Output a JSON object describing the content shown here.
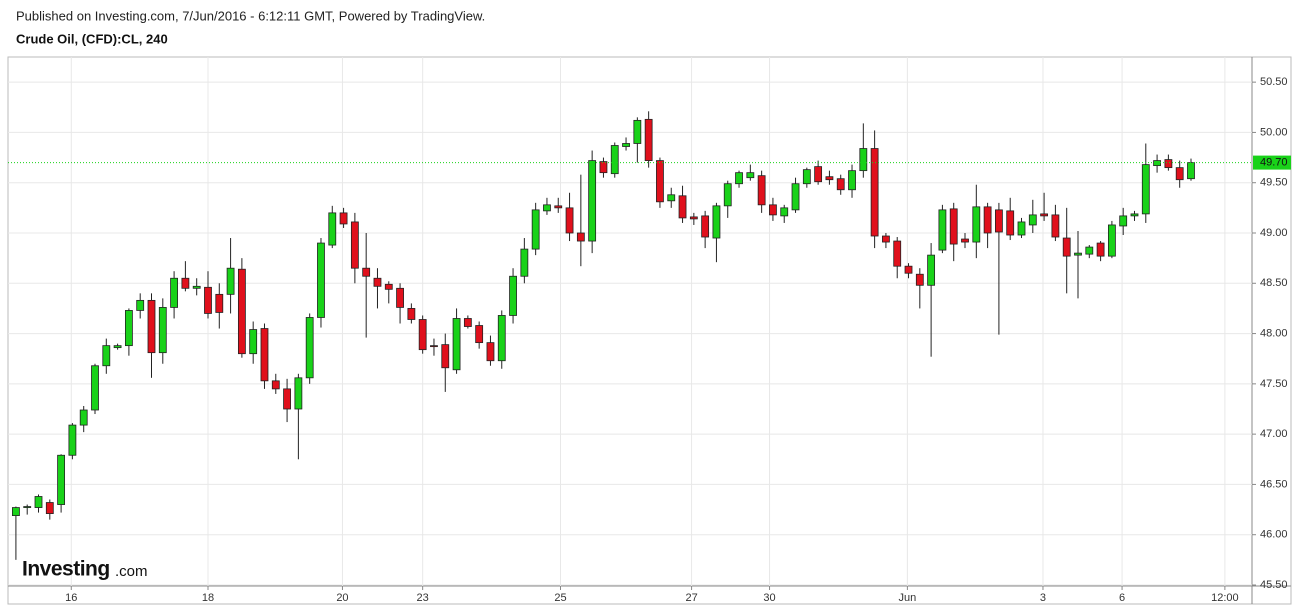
{
  "chart_data": {
    "type": "candlestick",
    "title": "Crude Oil, (CFD):CL, 240",
    "subtitle": "Published on Investing.com, 7/Jun/2016 - 6:12:11 GMT, Powered by TradingView.",
    "logo": "Investing",
    "logo_suffix": ".com",
    "up_color": "#19d219",
    "down_color": "#e0101c",
    "grid": true,
    "ylim": [
      45.49,
      50.75
    ],
    "yticks": [
      {
        "value": 45.5,
        "label": "45.50"
      },
      {
        "value": 46,
        "label": "46.00"
      },
      {
        "value": 46.5,
        "label": "46.50"
      },
      {
        "value": 47,
        "label": "47.00"
      },
      {
        "value": 47.5,
        "label": "47.50"
      },
      {
        "value": 48,
        "label": "48.00"
      },
      {
        "value": 48.5,
        "label": "48.50"
      },
      {
        "value": 49,
        "label": "49.00"
      },
      {
        "value": 49.5,
        "label": "49.50"
      },
      {
        "value": 50,
        "label": "50.00"
      },
      {
        "value": 50.5,
        "label": "50.50"
      }
    ],
    "xlim": [
      -0.7,
      109.4
    ],
    "xticks": [
      {
        "value": 4.9,
        "label": "16"
      },
      {
        "value": 17.0,
        "label": "18"
      },
      {
        "value": 28.9,
        "label": "20"
      },
      {
        "value": 36.0,
        "label": "23"
      },
      {
        "value": 48.2,
        "label": "25"
      },
      {
        "value": 59.8,
        "label": "27"
      },
      {
        "value": 66.7,
        "label": "30"
      },
      {
        "value": 78.9,
        "label": "Jun"
      },
      {
        "value": 90.9,
        "label": "3"
      },
      {
        "value": 97.9,
        "label": "6"
      },
      {
        "value": 107.0,
        "label": "12:00"
      }
    ],
    "last_price": {
      "value": 49.7,
      "label": "49.70"
    },
    "open": [
      46.19,
      46.27,
      46.27,
      46.32,
      46.3,
      46.79,
      47.09,
      47.24,
      47.68,
      47.86,
      47.88,
      48.23,
      48.33,
      47.81,
      48.26,
      48.55,
      48.45,
      48.46,
      48.39,
      48.39,
      48.64,
      47.8,
      48.05,
      47.53,
      47.45,
      47.25,
      47.56,
      48.16,
      48.88,
      49.2,
      49.11,
      48.65,
      48.55,
      48.49,
      48.45,
      48.25,
      48.14,
      47.88,
      47.89,
      47.64,
      48.15,
      48.08,
      47.91,
      47.73,
      48.18,
      48.57,
      48.84,
      49.22,
      49.27,
      49.25,
      49.0,
      48.92,
      49.71,
      49.59,
      49.86,
      49.89,
      50.13,
      49.72,
      49.32,
      49.37,
      49.16,
      49.17,
      48.95,
      49.27,
      49.49,
      49.55,
      49.57,
      49.28,
      49.17,
      49.23,
      49.49,
      49.66,
      49.56,
      49.54,
      49.43,
      49.62,
      49.84,
      48.97,
      48.92,
      48.67,
      48.59,
      48.48,
      48.83,
      49.24,
      48.94,
      48.91,
      49.26,
      49.23,
      49.22,
      48.98,
      49.08,
      49.19,
      49.18,
      48.95,
      48.78,
      48.79,
      48.9,
      48.77,
      49.07,
      49.17,
      49.19,
      49.67,
      49.73,
      49.65,
      49.54
    ],
    "high": [
      46.28,
      46.3,
      46.4,
      46.35,
      46.8,
      47.11,
      47.28,
      47.7,
      47.95,
      47.9,
      48.25,
      48.4,
      48.4,
      48.35,
      48.62,
      48.72,
      48.55,
      48.62,
      48.5,
      48.95,
      48.75,
      48.12,
      48.1,
      47.6,
      47.55,
      47.6,
      48.2,
      48.95,
      49.27,
      49.25,
      49.2,
      49.0,
      48.65,
      48.52,
      48.5,
      48.3,
      48.18,
      47.95,
      48.0,
      48.25,
      48.18,
      48.12,
      47.98,
      48.23,
      48.65,
      48.95,
      49.3,
      49.35,
      49.35,
      49.4,
      49.58,
      49.82,
      49.75,
      49.9,
      49.95,
      50.15,
      50.21,
      49.75,
      49.45,
      49.47,
      49.2,
      49.22,
      49.3,
      49.52,
      49.62,
      49.68,
      49.62,
      49.35,
      49.28,
      49.55,
      49.65,
      49.72,
      49.62,
      49.58,
      49.68,
      50.09,
      50.02,
      49.0,
      48.96,
      48.7,
      48.65,
      48.9,
      49.28,
      49.3,
      49.0,
      49.48,
      49.3,
      49.3,
      49.35,
      49.15,
      49.33,
      49.4,
      49.28,
      49.25,
      49.02,
      48.88,
      48.92,
      49.12,
      49.25,
      49.22,
      49.89,
      49.78,
      49.78,
      49.72,
      49.74
    ],
    "low": [
      45.75,
      46.2,
      46.22,
      46.15,
      46.22,
      46.75,
      47.02,
      47.2,
      47.6,
      47.84,
      47.78,
      48.15,
      47.56,
      47.7,
      48.15,
      48.42,
      48.38,
      48.15,
      48.05,
      48.2,
      47.76,
      47.7,
      47.45,
      47.4,
      47.12,
      46.75,
      47.5,
      48.06,
      48.85,
      49.05,
      48.5,
      47.96,
      48.25,
      48.3,
      48.1,
      48.1,
      47.8,
      47.78,
      47.42,
      47.6,
      48.05,
      47.85,
      47.68,
      47.65,
      48.1,
      48.5,
      48.78,
      49.18,
      49.2,
      48.92,
      48.67,
      48.8,
      49.55,
      49.55,
      49.82,
      49.7,
      49.65,
      49.25,
      49.25,
      49.1,
      49.08,
      48.85,
      48.71,
      49.15,
      49.45,
      49.52,
      49.2,
      49.12,
      49.1,
      49.2,
      49.45,
      49.48,
      49.48,
      49.38,
      49.35,
      49.55,
      48.85,
      48.85,
      48.55,
      48.55,
      48.25,
      47.77,
      48.8,
      48.72,
      48.85,
      48.75,
      48.85,
      47.99,
      48.93,
      48.95,
      49.0,
      49.12,
      48.92,
      48.4,
      48.35,
      48.75,
      48.72,
      48.75,
      48.98,
      49.12,
      49.1,
      49.6,
      49.62,
      49.45,
      49.52
    ],
    "close": [
      46.27,
      46.28,
      46.38,
      46.21,
      46.79,
      47.09,
      47.24,
      47.68,
      47.88,
      47.88,
      48.23,
      48.33,
      47.81,
      48.26,
      48.55,
      48.45,
      48.47,
      48.2,
      48.21,
      48.65,
      47.8,
      48.04,
      47.53,
      47.45,
      47.25,
      47.56,
      48.16,
      48.9,
      49.2,
      49.09,
      48.65,
      48.57,
      48.47,
      48.44,
      48.26,
      48.14,
      47.84,
      47.87,
      47.66,
      48.15,
      48.07,
      47.91,
      47.73,
      48.18,
      48.57,
      48.84,
      49.23,
      49.28,
      49.25,
      49.0,
      48.92,
      49.72,
      49.6,
      49.87,
      49.89,
      50.12,
      49.72,
      49.31,
      49.38,
      49.15,
      49.14,
      48.96,
      49.27,
      49.49,
      49.6,
      49.6,
      49.28,
      49.18,
      49.25,
      49.49,
      49.63,
      49.51,
      49.53,
      49.43,
      49.62,
      49.84,
      48.97,
      48.91,
      48.67,
      48.6,
      48.48,
      48.78,
      49.23,
      48.89,
      48.91,
      49.26,
      49.0,
      49.01,
      48.98,
      49.11,
      49.18,
      49.17,
      48.96,
      48.77,
      48.8,
      48.86,
      48.77,
      49.08,
      49.17,
      49.19,
      49.68,
      49.72,
      49.65,
      49.53,
      49.7
    ]
  }
}
